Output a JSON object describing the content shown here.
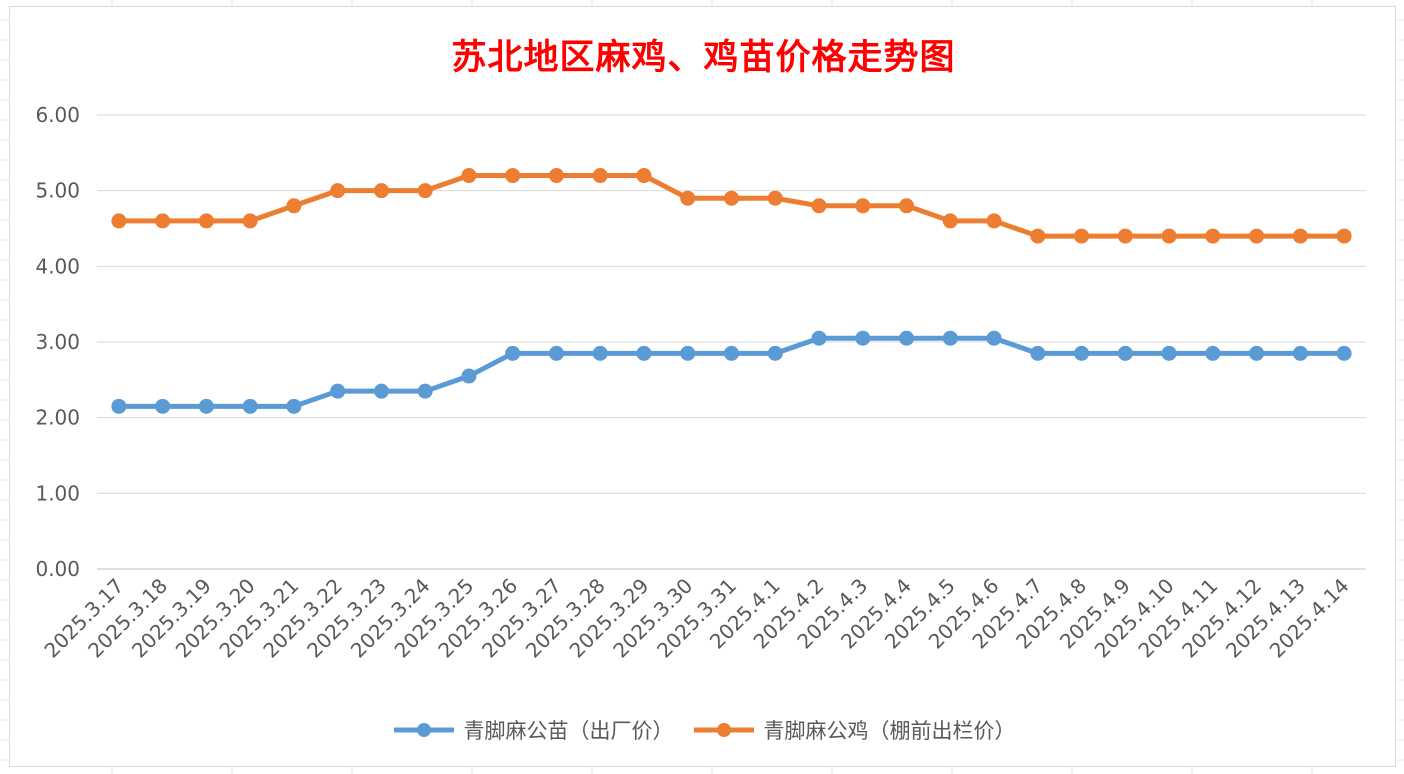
{
  "chart_data": {
    "type": "line",
    "title": "苏北地区麻鸡、鸡苗价格走势图",
    "xlabel": "",
    "ylabel": "",
    "ylim": [
      0,
      6
    ],
    "yticks": [
      "0.00",
      "1.00",
      "2.00",
      "3.00",
      "4.00",
      "5.00",
      "6.00"
    ],
    "grid": true,
    "legend_position": "bottom",
    "categories": [
      "2025.3.17",
      "2025.3.18",
      "2025.3.19",
      "2025.3.20",
      "2025.3.21",
      "2025.3.22",
      "2025.3.23",
      "2025.3.24",
      "2025.3.25",
      "2025.3.26",
      "2025.3.27",
      "2025.3.28",
      "2025.3.29",
      "2025.3.30",
      "2025.3.31",
      "2025.4.1",
      "2025.4.2",
      "2025.4.3",
      "2025.4.4",
      "2025.4.5",
      "2025.4.6",
      "2025.4.7",
      "2025.4.8",
      "2025.4.9",
      "2025.4.10",
      "2025.4.11",
      "2025.4.12",
      "2025.4.13",
      "2025.4.14"
    ],
    "series": [
      {
        "name": "青脚麻公苗（出厂价）",
        "color": "#5b9bd5",
        "values": [
          2.15,
          2.15,
          2.15,
          2.15,
          2.15,
          2.35,
          2.35,
          2.35,
          2.55,
          2.85,
          2.85,
          2.85,
          2.85,
          2.85,
          2.85,
          2.85,
          3.05,
          3.05,
          3.05,
          3.05,
          3.05,
          2.85,
          2.85,
          2.85,
          2.85,
          2.85,
          2.85,
          2.85,
          2.85
        ]
      },
      {
        "name": "青脚麻公鸡（棚前出栏价）",
        "color": "#ed7d31",
        "values": [
          4.6,
          4.6,
          4.6,
          4.6,
          4.8,
          5.0,
          5.0,
          5.0,
          5.2,
          5.2,
          5.2,
          5.2,
          5.2,
          4.9,
          4.9,
          4.9,
          4.8,
          4.8,
          4.8,
          4.6,
          4.6,
          4.4,
          4.4,
          4.4,
          4.4,
          4.4,
          4.4,
          4.4,
          4.4
        ]
      }
    ]
  }
}
